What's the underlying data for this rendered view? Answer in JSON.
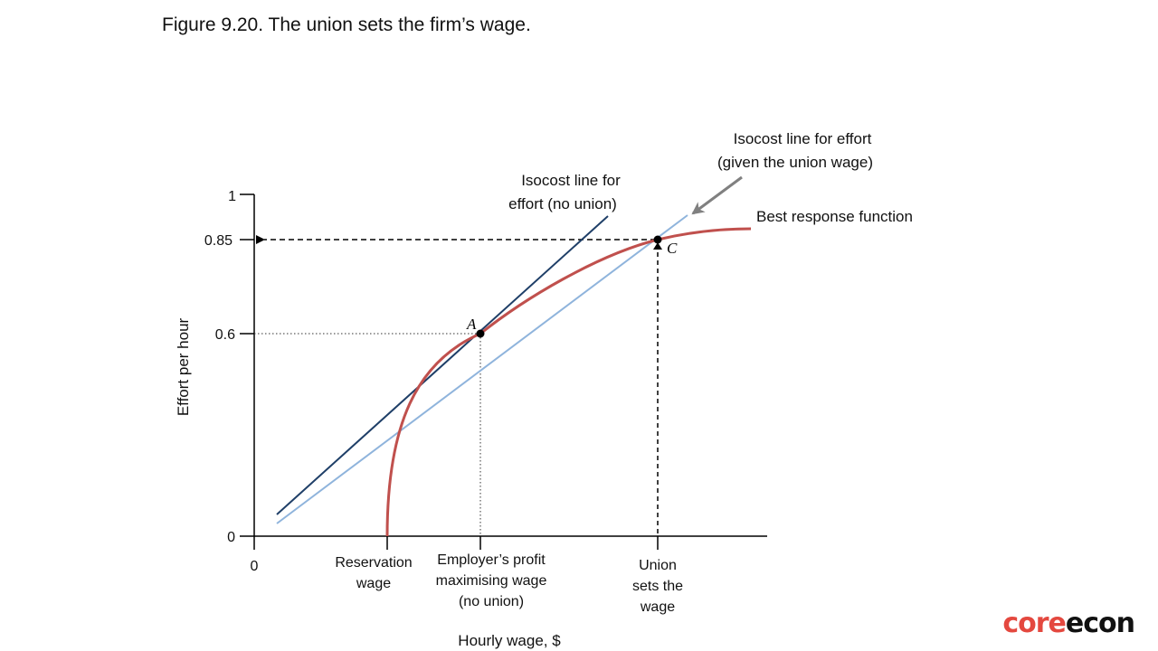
{
  "figure": {
    "title": "Figure 9.20. The union sets the firm’s wage."
  },
  "logo": {
    "part1": "core",
    "part2": "econ"
  },
  "chart_data": {
    "type": "line",
    "xlabel": "Hourly wage, $",
    "ylabel": "Effort per hour",
    "y_ticks": [
      "1",
      "0.85",
      "0.6",
      "0"
    ],
    "x_origin_label": "0",
    "x_labels": {
      "reservation": [
        "Reservation",
        "wage"
      ],
      "employer": [
        "Employer’s profit",
        "maximising wage",
        "(no union)"
      ],
      "union": [
        "Union",
        "sets the",
        "wage"
      ]
    },
    "series": [
      {
        "name": "Isocost line for effort (no union)",
        "color": "#1f3f68"
      },
      {
        "name": "Isocost line for effort (given the union wage)",
        "color": "#8fb4dc"
      },
      {
        "name": "Best response function",
        "color": "#c0504d"
      }
    ],
    "annotations": {
      "iso_no_union": [
        "Isocost line for",
        "effort (no union)"
      ],
      "iso_union": [
        "Isocost line for effort",
        "(given the union wage)"
      ],
      "best_response": "Best response function",
      "point_a": "A",
      "point_c": "C"
    },
    "points": [
      {
        "label": "A",
        "effort": 0.6
      },
      {
        "label": "C",
        "effort": 0.85
      }
    ]
  }
}
